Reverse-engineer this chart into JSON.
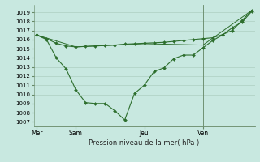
{
  "title": "Pression niveau de la mer( hPa )",
  "fig_bg_color": "#c8e8e0",
  "plot_bg_color": "#c8e8e0",
  "grid_color": "#99bbaa",
  "line_color": "#2d6e2d",
  "marker_color": "#2d6e2d",
  "vline_color": "#668866",
  "ylim": [
    1006.5,
    1019.8
  ],
  "yticks": [
    1007,
    1008,
    1009,
    1010,
    1011,
    1012,
    1013,
    1014,
    1015,
    1016,
    1017,
    1018,
    1019
  ],
  "xtick_labels": [
    "Mer",
    "Sam",
    "Jeu",
    "Ven"
  ],
  "xtick_positions": [
    0,
    4,
    11,
    17
  ],
  "vline_positions": [
    0,
    4,
    11,
    17
  ],
  "xlim": [
    -0.3,
    22.3
  ],
  "line1_x": [
    0,
    1,
    2,
    3,
    4,
    5,
    6,
    7,
    8,
    9,
    10,
    11,
    12,
    13,
    14,
    15,
    16,
    17,
    18,
    19,
    20,
    21,
    22
  ],
  "line1_y": [
    1016.5,
    1016.1,
    1015.6,
    1015.3,
    1015.2,
    1015.25,
    1015.3,
    1015.35,
    1015.4,
    1015.5,
    1015.55,
    1015.6,
    1015.65,
    1015.7,
    1015.8,
    1015.9,
    1016.0,
    1016.1,
    1016.2,
    1016.55,
    1017.0,
    1018.1,
    1019.2
  ],
  "line2_x": [
    0,
    1,
    2,
    3,
    4,
    5,
    6,
    7,
    8,
    9,
    10,
    11,
    12,
    13,
    14,
    15,
    16,
    17,
    18,
    19,
    20,
    21,
    22
  ],
  "line2_y": [
    1016.5,
    1016.0,
    1014.0,
    1012.8,
    1010.5,
    1009.1,
    1009.0,
    1009.0,
    1008.2,
    1007.2,
    1010.1,
    1011.0,
    1012.5,
    1012.9,
    1013.9,
    1014.3,
    1014.3,
    1015.1,
    1015.9,
    1016.5,
    1017.3,
    1017.9,
    1019.1
  ],
  "line3_x": [
    0,
    4,
    11,
    17,
    22
  ],
  "line3_y": [
    1016.5,
    1015.2,
    1015.55,
    1015.4,
    1019.2
  ],
  "figsize": [
    3.2,
    2.0
  ],
  "dpi": 100
}
